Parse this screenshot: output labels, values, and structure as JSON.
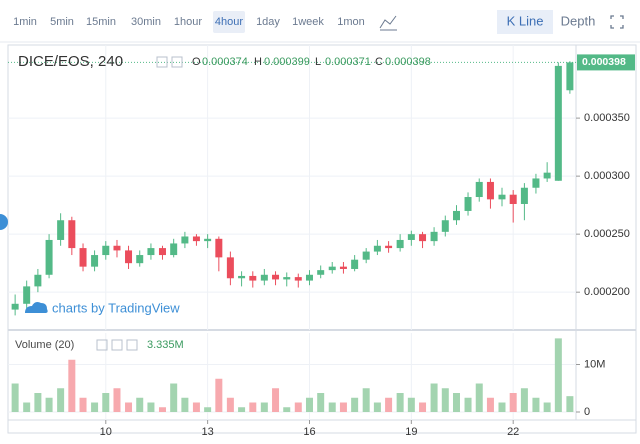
{
  "toolbar": {
    "intervals": [
      "1min",
      "5min",
      "15min",
      "30min",
      "1hour",
      "4hour",
      "1day",
      "1week",
      "1mon"
    ],
    "active_index": 5,
    "views": [
      "K Line",
      "Depth"
    ],
    "active_view": 0
  },
  "chart_data": [
    {
      "type": "candlestick",
      "title": "DICE/EOS, 240",
      "ohlc_labels": [
        "O",
        "H",
        "L",
        "C"
      ],
      "watermark": "charts by TradingView",
      "up_color": "#53b987",
      "down_color": "#eb4d5c",
      "grid": true,
      "x": [
        7.33,
        7.67,
        8.0,
        8.33,
        8.67,
        9.0,
        9.33,
        9.67,
        10.0,
        10.33,
        10.67,
        11.0,
        11.33,
        11.67,
        12.0,
        12.33,
        12.67,
        13.0,
        13.33,
        13.67,
        14.0,
        14.33,
        14.67,
        15.0,
        15.33,
        15.67,
        16.0,
        16.33,
        16.67,
        17.0,
        17.33,
        17.67,
        18.0,
        18.33,
        18.67,
        19.0,
        19.33,
        19.67,
        20.0,
        20.33,
        20.67,
        21.0,
        21.33,
        21.67,
        22.0,
        22.33,
        22.67,
        23.0,
        23.33,
        23.67
      ],
      "open": [
        0.000185,
        0.00019,
        0.000205,
        0.000215,
        0.000245,
        0.000262,
        0.000238,
        0.000222,
        0.000232,
        0.00024,
        0.000236,
        0.000225,
        0.000232,
        0.000238,
        0.000232,
        0.000242,
        0.000248,
        0.000244,
        0.000246,
        0.00023,
        0.000212,
        0.000214,
        0.00021,
        0.000215,
        0.000211,
        0.000213,
        0.00021,
        0.000215,
        0.000219,
        0.000222,
        0.00022,
        0.000228,
        0.000235,
        0.00024,
        0.000238,
        0.000245,
        0.00025,
        0.000244,
        0.000252,
        0.000262,
        0.00027,
        0.000282,
        0.000295,
        0.00028,
        0.000284,
        0.000276,
        0.00029,
        0.000298,
        0.000296,
        0.000374
      ],
      "high": [
        0.000198,
        0.00021,
        0.00022,
        0.00025,
        0.000268,
        0.000265,
        0.000242,
        0.000236,
        0.000244,
        0.000245,
        0.00024,
        0.000236,
        0.000242,
        0.00024,
        0.000246,
        0.000252,
        0.00025,
        0.00025,
        0.000248,
        0.000235,
        0.000218,
        0.000218,
        0.00022,
        0.000218,
        0.000217,
        0.000216,
        0.000219,
        0.000223,
        0.000226,
        0.000226,
        0.000232,
        0.000238,
        0.000245,
        0.000244,
        0.00025,
        0.000253,
        0.000252,
        0.000256,
        0.000266,
        0.000275,
        0.000286,
        0.000298,
        0.000298,
        0.00029,
        0.000288,
        0.000294,
        0.000302,
        0.000312,
        0.000398,
        0.000399
      ],
      "low": [
        0.00018,
        0.000186,
        0.0002,
        0.000212,
        0.00024,
        0.000232,
        0.000218,
        0.000218,
        0.000228,
        0.00023,
        0.00022,
        0.000222,
        0.000228,
        0.000228,
        0.00023,
        0.000238,
        0.00024,
        0.000238,
        0.000218,
        0.000206,
        0.000205,
        0.000204,
        0.000206,
        0.000206,
        0.000205,
        0.000204,
        0.000206,
        0.000212,
        0.000216,
        0.000216,
        0.000218,
        0.000225,
        0.000232,
        0.000234,
        0.000235,
        0.00024,
        0.000238,
        0.00024,
        0.000248,
        0.000258,
        0.000266,
        0.000278,
        0.000272,
        0.000274,
        0.00026,
        0.000262,
        0.000285,
        0.000295,
        0.000296,
        0.000371
      ],
      "close": [
        0.00019,
        0.000205,
        0.000215,
        0.000245,
        0.000262,
        0.000238,
        0.000222,
        0.000232,
        0.00024,
        0.000236,
        0.000225,
        0.000232,
        0.000238,
        0.000232,
        0.000242,
        0.000248,
        0.000244,
        0.000246,
        0.00023,
        0.000212,
        0.000214,
        0.00021,
        0.000215,
        0.000211,
        0.000213,
        0.00021,
        0.000215,
        0.000219,
        0.000222,
        0.00022,
        0.000228,
        0.000235,
        0.00024,
        0.000238,
        0.000245,
        0.00025,
        0.000244,
        0.000252,
        0.000262,
        0.00027,
        0.000282,
        0.000295,
        0.00028,
        0.000284,
        0.000276,
        0.00029,
        0.000298,
        0.000303,
        0.000395,
        0.000398
      ],
      "xlim": [
        7.12,
        23.85
      ],
      "xticks": [
        10,
        13,
        16,
        19,
        22
      ],
      "ylim": [
        0.00017,
        0.000413
      ],
      "yticks": [
        {
          "value": 0.0002,
          "label": "0.000200"
        },
        {
          "value": 0.00025,
          "label": "0.000250"
        },
        {
          "value": 0.0003,
          "label": "0.000300"
        },
        {
          "value": 0.00035,
          "label": "0.000350"
        }
      ]
    },
    {
      "type": "bar",
      "title": "Volume (20)",
      "up_color": "#a3d4b0",
      "down_color": "#f7a9ae",
      "grid": true,
      "x": [
        7.33,
        7.67,
        8.0,
        8.33,
        8.67,
        9.0,
        9.33,
        9.67,
        10.0,
        10.33,
        10.67,
        11.0,
        11.33,
        11.67,
        12.0,
        12.33,
        12.67,
        13.0,
        13.33,
        13.67,
        14.0,
        14.33,
        14.67,
        15.0,
        15.33,
        15.67,
        16.0,
        16.33,
        16.67,
        17.0,
        17.33,
        17.67,
        18.0,
        18.33,
        18.67,
        19.0,
        19.33,
        19.67,
        20.0,
        20.33,
        20.67,
        21.0,
        21.33,
        21.67,
        22.0,
        22.33,
        22.67,
        23.0,
        23.33,
        23.67
      ],
      "values": [
        6000000,
        2000000,
        4000000,
        3000000,
        5000000,
        11000000,
        3000000,
        2000000,
        4000000,
        5000000,
        2000000,
        3000000,
        2000000,
        1000000,
        6000000,
        3000000,
        2000000,
        1000000,
        7000000,
        3000000,
        1000000,
        2000000,
        2000000,
        5000000,
        1000000,
        2000000,
        3000000,
        4000000,
        2000000,
        2000000,
        3000000,
        5000000,
        2000000,
        3000000,
        4000000,
        3000000,
        2000000,
        6000000,
        5000000,
        4000000,
        3000000,
        6000000,
        3000000,
        2000000,
        4000000,
        5000000,
        3000000,
        2000000,
        15500000,
        3335000
      ],
      "value_labels": [
        null,
        null,
        null,
        null,
        null,
        null,
        null,
        null,
        null,
        null,
        null,
        null,
        null,
        null,
        null,
        null,
        null,
        null,
        null,
        null,
        null,
        null,
        null,
        null,
        null,
        null,
        null,
        null,
        null,
        null,
        null,
        null,
        null,
        null,
        null,
        null,
        null,
        null,
        null,
        null,
        null,
        null,
        null,
        null,
        null,
        null,
        null,
        null,
        null,
        "3.335M"
      ],
      "xlim": [
        7.12,
        23.85
      ],
      "xticks": [
        10,
        13,
        16,
        19,
        22
      ],
      "ylim": [
        0,
        16000000
      ],
      "yticks": [
        0,
        {
          "value": 10000000,
          "label": "10M"
        }
      ]
    }
  ]
}
